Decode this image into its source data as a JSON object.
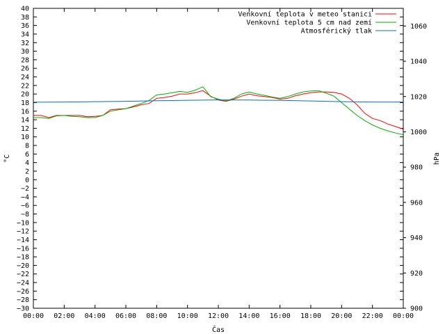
{
  "chart_data": {
    "type": "line",
    "xlabel": "Čas",
    "ylabel_left": "°C",
    "ylabel_right": "hPa",
    "x_ticks": [
      "00:00",
      "02:00",
      "04:00",
      "06:00",
      "08:00",
      "10:00",
      "12:00",
      "14:00",
      "16:00",
      "18:00",
      "20:00",
      "22:00",
      "00:00"
    ],
    "x_range_hours": [
      0,
      24
    ],
    "ylim_left": [
      -30,
      40
    ],
    "ytick_step_left": 2,
    "ylim_right": [
      900,
      1070
    ],
    "yticks_right": [
      900,
      920,
      940,
      960,
      980,
      1000,
      1020,
      1040,
      1060
    ],
    "grid": false,
    "legend_position": "top-right",
    "series": [
      {
        "name": "Venkovní teplota v meteo stanici",
        "axis": "left",
        "color": "#ff0000",
        "x": [
          0,
          0.5,
          1,
          1.5,
          2,
          2.5,
          3,
          3.5,
          4,
          4.5,
          5,
          5.5,
          6,
          6.5,
          7,
          7.5,
          8,
          8.5,
          9,
          9.5,
          10,
          10.5,
          11,
          11.5,
          12,
          12.5,
          13,
          13.5,
          14,
          14.5,
          15,
          15.5,
          16,
          16.5,
          17,
          17.5,
          18,
          18.5,
          19,
          19.5,
          20,
          20.5,
          21,
          21.5,
          22,
          22.5,
          23,
          23.5,
          24
        ],
        "values": [
          15,
          15,
          14.5,
          15,
          15,
          15,
          15,
          14.7,
          14.8,
          15,
          16.3,
          16.5,
          16.6,
          17,
          17.5,
          17.8,
          19,
          19.2,
          19.5,
          20,
          20,
          20.3,
          20.8,
          19.5,
          18.6,
          18.3,
          18.8,
          19.5,
          20,
          19.6,
          19.4,
          19.2,
          18.8,
          19,
          19.6,
          20,
          20.3,
          20.5,
          20.5,
          20.4,
          20,
          19,
          17.5,
          15.5,
          14.3,
          13.8,
          13,
          12.4,
          11.8
        ]
      },
      {
        "name": "Venkovní teplota 5 cm nad zemí",
        "axis": "left",
        "color": "#00b000",
        "x": [
          0,
          0.5,
          1,
          1.5,
          2,
          2.5,
          3,
          3.5,
          4,
          4.5,
          5,
          5.5,
          6,
          6.5,
          7,
          7.5,
          8,
          8.5,
          9,
          9.5,
          10,
          10.5,
          11,
          11.5,
          12,
          12.5,
          13,
          13.5,
          14,
          14.5,
          15,
          15.5,
          16,
          16.5,
          17,
          17.5,
          18,
          18.5,
          19,
          19.5,
          20,
          20.5,
          21,
          21.5,
          22,
          22.5,
          23,
          23.5,
          24
        ],
        "values": [
          14.5,
          14.5,
          14.3,
          14.9,
          15,
          14.8,
          14.7,
          14.5,
          14.5,
          15,
          16,
          16.3,
          16.6,
          17.2,
          17.8,
          18.5,
          19.8,
          20,
          20.3,
          20.6,
          20.4,
          20.9,
          21.7,
          19.4,
          18.8,
          18.4,
          19,
          20,
          20.5,
          20,
          19.7,
          19.3,
          19,
          19.4,
          20,
          20.5,
          20.7,
          20.8,
          20.2,
          19.5,
          18,
          16.5,
          15,
          13.8,
          12.8,
          12,
          11.4,
          10.9,
          10.5
        ]
      },
      {
        "name": "Atmosférický tlak",
        "axis": "right",
        "color": "#0070c0",
        "x": [
          0,
          2,
          4,
          6,
          8,
          10,
          12,
          14,
          16,
          18,
          20,
          22,
          24
        ],
        "values": [
          1016.8,
          1016.9,
          1017.1,
          1017.3,
          1017.6,
          1017.9,
          1018.1,
          1018,
          1017.8,
          1017.5,
          1017.1,
          1016.9,
          1016.9
        ]
      }
    ]
  }
}
